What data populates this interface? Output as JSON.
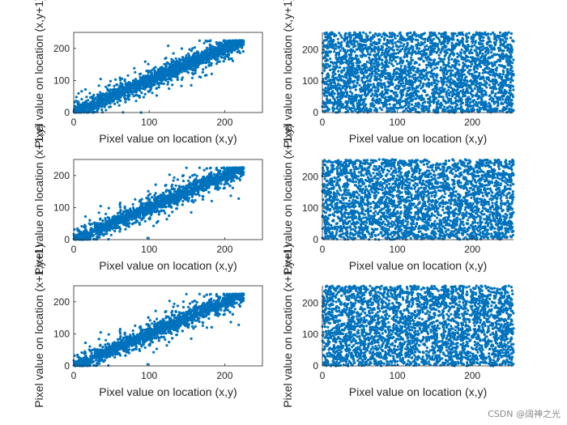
{
  "colors": {
    "marker": "#0072BD",
    "axis": "#262626",
    "background": "#ffffff"
  },
  "watermark": "CSDN @阔神之光",
  "chart_data": [
    {
      "id": "p11",
      "type": "scatter",
      "correlation": "strong",
      "xlabel": "Pixel value on location (x,y)",
      "ylabel": "Pixel value on location (x,y+1)",
      "xlim": [
        0,
        250
      ],
      "ylim": [
        0,
        250
      ],
      "xticks": [
        0,
        100,
        200
      ],
      "yticks": [
        0,
        100,
        200
      ],
      "point_range": [
        0,
        225
      ],
      "box": true
    },
    {
      "id": "p12",
      "type": "scatter",
      "correlation": "none",
      "xlabel": "Pixel value on location (x,y)",
      "ylabel": "Pixel value on location (x,y+1)",
      "xlim": [
        0,
        255
      ],
      "ylim": [
        0,
        255
      ],
      "xticks": [
        0,
        100,
        200
      ],
      "yticks": [
        0,
        100,
        200
      ],
      "point_range": [
        0,
        255
      ],
      "box": false
    },
    {
      "id": "p21",
      "type": "scatter",
      "correlation": "strong",
      "xlabel": "Pixel value on location (x,y)",
      "ylabel": "Pixel value on location (x+1,y)",
      "xlim": [
        0,
        250
      ],
      "ylim": [
        0,
        250
      ],
      "xticks": [
        0,
        100,
        200
      ],
      "yticks": [
        0,
        100,
        200
      ],
      "point_range": [
        0,
        225
      ],
      "box": true
    },
    {
      "id": "p22",
      "type": "scatter",
      "correlation": "none",
      "xlabel": "Pixel value on location (x,y)",
      "ylabel": "Pixel value on location (x+1,y)",
      "xlim": [
        0,
        255
      ],
      "ylim": [
        0,
        255
      ],
      "xticks": [
        0,
        100,
        200
      ],
      "yticks": [
        0,
        100,
        200
      ],
      "point_range": [
        0,
        255
      ],
      "box": false
    },
    {
      "id": "p31",
      "type": "scatter",
      "correlation": "strong",
      "xlabel": "Pixel value on location (x,y)",
      "ylabel": "Pixel value on location (x+1,y+1)",
      "xlim": [
        0,
        250
      ],
      "ylim": [
        0,
        250
      ],
      "xticks": [
        0,
        100,
        200
      ],
      "yticks": [
        0,
        100,
        200
      ],
      "point_range": [
        0,
        225
      ],
      "box": true
    },
    {
      "id": "p32",
      "type": "scatter",
      "correlation": "none",
      "xlabel": "Pixel value on location (x,y)",
      "ylabel": "Pixel value on location (x+1,y+1)",
      "xlim": [
        0,
        255
      ],
      "ylim": [
        0,
        255
      ],
      "xticks": [
        0,
        100,
        200
      ],
      "yticks": [
        0,
        100,
        200
      ],
      "point_range": [
        0,
        255
      ],
      "box": false
    }
  ]
}
